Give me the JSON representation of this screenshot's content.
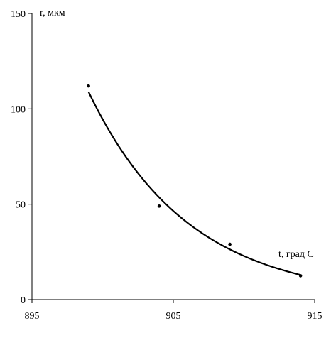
{
  "chart_data": {
    "type": "scatter",
    "ylabel": "r, мкм",
    "xlabel": "t, град С",
    "xlim": [
      895,
      915
    ],
    "ylim": [
      0,
      150
    ],
    "x_ticks": [
      "895",
      "905",
      "915"
    ],
    "y_ticks": [
      "0",
      "50",
      "100",
      "150"
    ],
    "grid": false,
    "series": [
      {
        "points": [
          {
            "x": 899,
            "y": 112
          },
          {
            "x": 904,
            "y": 49
          },
          {
            "x": 909,
            "y": 29
          },
          {
            "x": 914,
            "y": 12.5
          }
        ]
      }
    ],
    "trendline": {
      "type": "exponential",
      "x_range": [
        899,
        914
      ]
    }
  }
}
